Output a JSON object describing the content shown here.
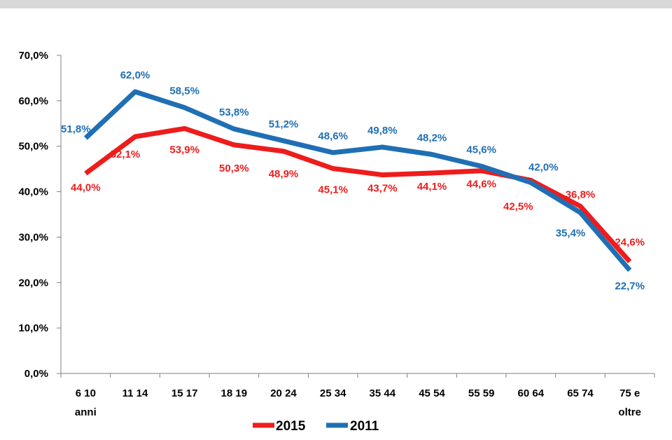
{
  "chart_data": {
    "type": "line",
    "categories": [
      [
        "6 10",
        "anni"
      ],
      [
        "11 14"
      ],
      [
        "15 17"
      ],
      [
        "18 19"
      ],
      [
        "20 24"
      ],
      [
        "25 34"
      ],
      [
        "35 44"
      ],
      [
        "45 54"
      ],
      [
        "55 59"
      ],
      [
        "60 64"
      ],
      [
        "65 74"
      ],
      [
        "75 e",
        "oltre"
      ]
    ],
    "series": [
      {
        "name": "2015",
        "color": "#ee1c1c",
        "values": [
          44.0,
          52.1,
          53.9,
          50.3,
          48.9,
          45.1,
          43.7,
          44.1,
          44.6,
          42.5,
          36.8,
          24.6
        ],
        "labels": [
          "44,0%",
          "52,1%",
          "53,9%",
          "50,3%",
          "48,9%",
          "45,1%",
          "43,7%",
          "44,1%",
          "44,6%",
          "42,5%",
          "36,8%",
          "24,6%"
        ]
      },
      {
        "name": "2011",
        "color": "#1f6fb4",
        "values": [
          51.8,
          62.0,
          58.5,
          53.8,
          51.2,
          48.6,
          49.8,
          48.2,
          45.6,
          42.0,
          35.4,
          22.7
        ],
        "labels": [
          "51,8%",
          "62,0%",
          "58,5%",
          "53,8%",
          "51,2%",
          "48,6%",
          "49,8%",
          "48,2%",
          "45,6%",
          "42,0%",
          "35,4%",
          "22,7%"
        ]
      }
    ],
    "yticks": [
      0,
      10,
      20,
      30,
      40,
      50,
      60,
      70
    ],
    "ytick_labels": [
      "0,0%",
      "10,0%",
      "20,0%",
      "30,0%",
      "40,0%",
      "50,0%",
      "60,0%",
      "70,0%"
    ],
    "ylim": [
      0,
      70
    ],
    "grid": false,
    "legend_position": "bottom-center",
    "axis_color": "#7f7f7f"
  }
}
